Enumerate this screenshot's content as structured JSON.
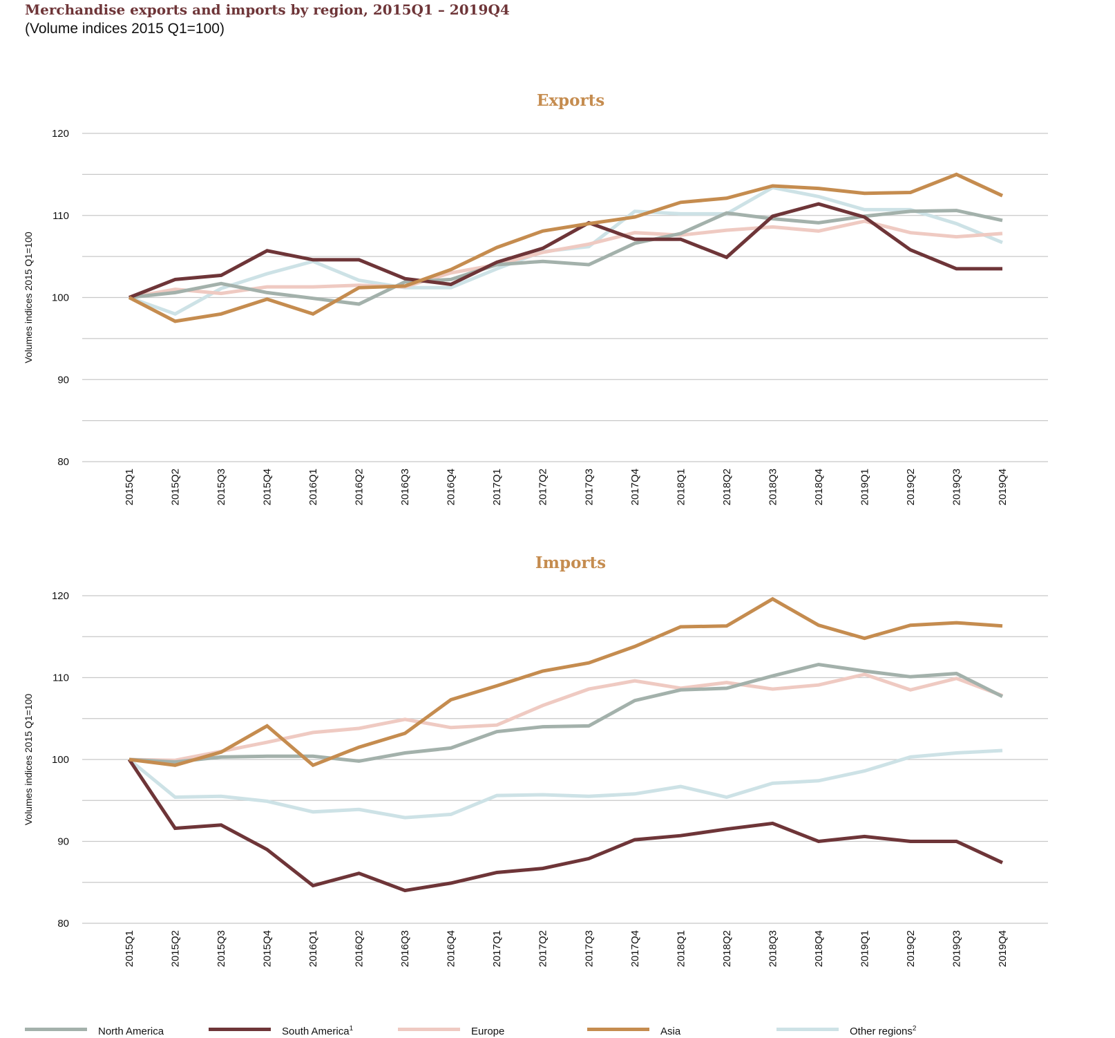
{
  "header": {
    "title": "Merchandise exports and imports by region, 2015Q1 – 2019Q4",
    "subtitle": "(Volume indices 2015 Q1=100)"
  },
  "colors": {
    "title": "#6e3538",
    "panel_title": "#c58c4f",
    "gridline": "#c8c8c8"
  },
  "legend": {
    "position": "bottom",
    "items": [
      {
        "label": "North America",
        "sup": "",
        "color": "#a3b1ab"
      },
      {
        "label": "South America",
        "sup": "1",
        "color": "#6e3538"
      },
      {
        "label": "Europe",
        "sup": "",
        "color": "#efcac2"
      },
      {
        "label": "Asia",
        "sup": "",
        "color": "#c58c4f"
      },
      {
        "label": "Other regions",
        "sup": "2",
        "color": "#cde2e6"
      }
    ]
  },
  "chart_data": [
    {
      "type": "line",
      "title": "Exports",
      "ylabel": "Volumes indices 2015 Q1=100",
      "xlabel": "",
      "ylim": [
        80,
        120
      ],
      "yticks": [
        80,
        90,
        100,
        110,
        120
      ],
      "grid": true,
      "categories": [
        "2015Q1",
        "2015Q2",
        "2015Q3",
        "2015Q4",
        "2016Q1",
        "2016Q2",
        "2016Q3",
        "2016Q4",
        "2017Q1",
        "2017Q2",
        "2017Q3",
        "2017Q4",
        "2018Q1",
        "2018Q2",
        "2018Q3",
        "2018Q4",
        "2019Q1",
        "2019Q2",
        "2019Q3",
        "2019Q4"
      ],
      "series": [
        {
          "name": "Other regions",
          "color": "#cde2e6",
          "values": [
            100,
            98,
            101.1,
            102.9,
            104.4,
            102.1,
            101.2,
            101.2,
            103.5,
            105.6,
            106.2,
            110.5,
            110.2,
            110.2,
            113.4,
            112.3,
            110.7,
            110.7,
            109,
            106.7
          ]
        },
        {
          "name": "Europe",
          "color": "#efcac2",
          "values": [
            100,
            101,
            100.5,
            101.3,
            101.3,
            101.5,
            101.3,
            103,
            104,
            105.5,
            106.5,
            107.9,
            107.6,
            108.2,
            108.6,
            108.1,
            109.3,
            107.9,
            107.4,
            107.8
          ]
        },
        {
          "name": "North America",
          "color": "#a3b1ab",
          "values": [
            100,
            100.6,
            101.7,
            100.6,
            99.9,
            99.2,
            101.9,
            102.2,
            104,
            104.4,
            104,
            106.6,
            107.8,
            110.3,
            109.6,
            109.1,
            109.9,
            110.5,
            110.6,
            109.4
          ]
        },
        {
          "name": "South America",
          "color": "#6e3538",
          "values": [
            100,
            102.2,
            102.7,
            105.7,
            104.6,
            104.6,
            102.3,
            101.6,
            104.3,
            106,
            109.1,
            107.1,
            107.1,
            104.9,
            109.9,
            111.4,
            109.8,
            105.8,
            103.5,
            103.5
          ]
        },
        {
          "name": "Asia",
          "color": "#c58c4f",
          "values": [
            100,
            97.1,
            98,
            99.8,
            98,
            101.2,
            101.4,
            103.4,
            106.1,
            108.1,
            109,
            109.8,
            111.6,
            112.1,
            113.6,
            113.3,
            112.7,
            112.8,
            115,
            112.4
          ]
        }
      ]
    },
    {
      "type": "line",
      "title": "Imports",
      "ylabel": "Volumes indices 2015 Q1=100",
      "xlabel": "",
      "ylim": [
        80,
        120
      ],
      "yticks": [
        80,
        90,
        100,
        110,
        120
      ],
      "grid": true,
      "categories": [
        "2015Q1",
        "2015Q2",
        "2015Q3",
        "2015Q4",
        "2016Q1",
        "2016Q2",
        "2016Q3",
        "2016Q4",
        "2017Q1",
        "2017Q2",
        "2017Q3",
        "2017Q4",
        "2018Q1",
        "2018Q2",
        "2018Q3",
        "2018Q4",
        "2019Q1",
        "2019Q2",
        "2019Q3",
        "2019Q4"
      ],
      "series": [
        {
          "name": "Other regions",
          "color": "#cde2e6",
          "values": [
            100,
            95.4,
            95.5,
            94.9,
            93.6,
            93.9,
            92.9,
            93.3,
            95.6,
            95.7,
            95.5,
            95.8,
            96.7,
            95.4,
            97.1,
            97.4,
            98.6,
            100.3,
            100.8,
            101.1
          ]
        },
        {
          "name": "Europe",
          "color": "#efcac2",
          "values": [
            100,
            99.9,
            101,
            102.1,
            103.3,
            103.8,
            104.9,
            103.9,
            104.2,
            106.6,
            108.6,
            109.6,
            108.7,
            109.4,
            108.6,
            109.1,
            110.4,
            108.5,
            109.9,
            107.8
          ]
        },
        {
          "name": "North America",
          "color": "#a3b1ab",
          "values": [
            100,
            99.7,
            100.3,
            100.4,
            100.4,
            99.8,
            100.8,
            101.4,
            103.4,
            104,
            104.1,
            107.2,
            108.5,
            108.7,
            110.2,
            111.6,
            110.8,
            110.1,
            110.5,
            107.7
          ]
        },
        {
          "name": "South America",
          "color": "#6e3538",
          "values": [
            100,
            91.6,
            92,
            89,
            84.6,
            86.1,
            84,
            84.9,
            86.2,
            86.7,
            87.9,
            90.2,
            90.7,
            91.5,
            92.2,
            90,
            90.6,
            90,
            90,
            87.4
          ]
        },
        {
          "name": "Asia",
          "color": "#c58c4f",
          "values": [
            100,
            99.3,
            100.9,
            104.1,
            99.3,
            101.5,
            103.2,
            107.3,
            109,
            110.8,
            111.8,
            113.8,
            116.2,
            116.3,
            119.6,
            116.4,
            114.8,
            116.4,
            116.7,
            116.3
          ]
        }
      ]
    }
  ]
}
